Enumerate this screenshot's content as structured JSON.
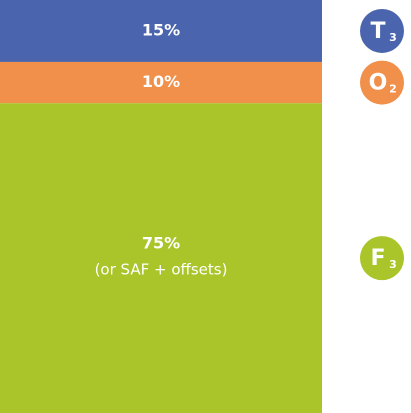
{
  "chart_data": {
    "type": "stacked-bar",
    "ylim": [
      0,
      100
    ],
    "series": [
      {
        "label": "T",
        "sub": "3",
        "color": "#4a65ad",
        "values": [
          15
        ],
        "value_labels": [
          "15%"
        ]
      },
      {
        "label": "O",
        "sub": "2",
        "color": "#f0904a",
        "values": [
          10
        ],
        "value_labels": [
          "10%"
        ]
      },
      {
        "label": "F",
        "sub": "3",
        "color": "#a9c52a",
        "values": [
          75
        ],
        "value_labels": [
          "75%"
        ],
        "note": "(or SAF + offsets)"
      }
    ]
  }
}
